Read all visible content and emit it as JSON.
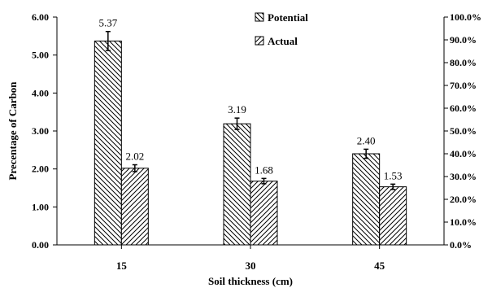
{
  "chart_data": {
    "type": "bar",
    "title": "",
    "xlabel": "Soil thickness (cm)",
    "ylabel": "Precentage of Carbon",
    "categories": [
      "15",
      "30",
      "45"
    ],
    "ylim": [
      0,
      6
    ],
    "yticks": [
      "0.00",
      "1.00",
      "2.00",
      "3.00",
      "4.00",
      "5.00",
      "6.00"
    ],
    "y2lim": [
      0,
      100
    ],
    "y2ticks": [
      "0.0%",
      "10.0%",
      "20.0%",
      "30.0%",
      "40.0%",
      "50.0%",
      "60.0%",
      "70.0%",
      "80.0%",
      "90.0%",
      "100.0%"
    ],
    "grid": false,
    "legend_position": "top-center",
    "series": [
      {
        "name": "Potential",
        "pattern": "backslash-hatch",
        "values": [
          5.37,
          3.19,
          2.4
        ],
        "labels": [
          "5.37",
          "3.19",
          "2.40"
        ],
        "errors": [
          0.25,
          0.15,
          0.12
        ]
      },
      {
        "name": "Actual",
        "pattern": "slash-hatch",
        "values": [
          2.02,
          1.68,
          1.53
        ],
        "labels": [
          "2.02",
          "1.68",
          "1.53"
        ],
        "errors": [
          0.09,
          0.07,
          0.07
        ]
      }
    ]
  }
}
